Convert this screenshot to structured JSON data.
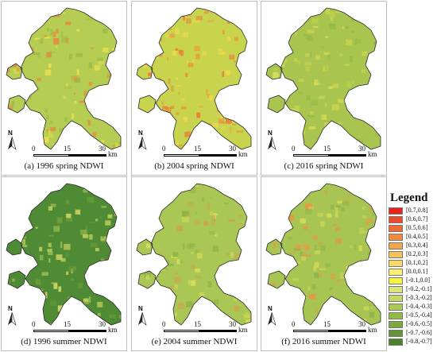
{
  "panels": [
    {
      "caption": "(a) 1996 spring NDWI",
      "base": "#b4cd52",
      "patch": [
        "#e38b3f",
        "#f2e04a",
        "#9bbb4b"
      ]
    },
    {
      "caption": "(b) 2004 spring NDWI",
      "base": "#c8d34e",
      "patch": [
        "#ec7a38",
        "#f0d84a",
        "#e5a03e"
      ]
    },
    {
      "caption": "(c) 2016 spring NDWI",
      "base": "#a9c550",
      "patch": [
        "#c8d54e",
        "#93b848",
        "#d9dc57"
      ]
    },
    {
      "caption": "(d) 1996 summer NDWI",
      "base": "#4f8a35",
      "patch": [
        "#b3cf57",
        "#6e9e3a",
        "#d5d863"
      ]
    },
    {
      "caption": "(e) 2004 summer NDWI",
      "base": "#aac654",
      "patch": [
        "#d8df59",
        "#8db44a",
        "#c9a84c"
      ]
    },
    {
      "caption": "(f) 2016 summer NDWI",
      "base": "#a8c553",
      "patch": [
        "#d6dc55",
        "#8cb449",
        "#e59944"
      ]
    }
  ],
  "north_label": "N",
  "scale": {
    "ticks": [
      "0",
      "15",
      "30"
    ],
    "unit": "km"
  },
  "legend": {
    "title": "Legend",
    "items": [
      {
        "label": "[0.7,0.8]",
        "color": "#e8231f"
      },
      {
        "label": "[0.6,0.7]",
        "color": "#ec4a2a"
      },
      {
        "label": "[0.5,0.6]",
        "color": "#ef6a34"
      },
      {
        "label": "[0.4,0.5]",
        "color": "#f18a3f"
      },
      {
        "label": "[0.3,0.4]",
        "color": "#f3a64c"
      },
      {
        "label": "[0.2,0.3]",
        "color": "#f6c15a"
      },
      {
        "label": "[0.1,0.2]",
        "color": "#f8d96a"
      },
      {
        "label": "[0.0,0.1]",
        "color": "#fbef7a"
      },
      {
        "label": "[-0.1,0.0]",
        "color": "#f5f542"
      },
      {
        "label": "[-0.2,-0.1]",
        "color": "#dde57a"
      },
      {
        "label": "[-0.3,-0.2]",
        "color": "#c5d766"
      },
      {
        "label": "[-0.4,-0.3]",
        "color": "#acc955"
      },
      {
        "label": "[-0.5,-0.4]",
        "color": "#93b947"
      },
      {
        "label": "[-0.6,-0.5]",
        "color": "#7aa83c"
      },
      {
        "label": "[-0.7,-0.6]",
        "color": "#629533"
      },
      {
        "label": "[-0.8,-0.7]",
        "color": "#4a822b"
      }
    ]
  }
}
